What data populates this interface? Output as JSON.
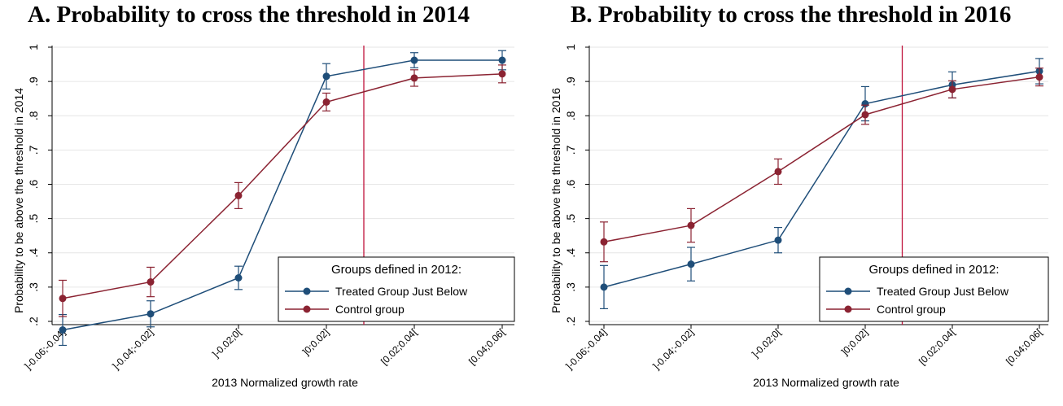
{
  "panels": [
    {
      "title": "A. Probability to cross the threshold in 2014"
    },
    {
      "title": "B. Probability to cross the threshold in 2016"
    }
  ],
  "chart_data": [
    {
      "type": "line",
      "title": "A. Probability to cross the threshold in 2014",
      "xlabel": "2013 Normalized growth rate",
      "ylabel": "Probability to be above the threshold in 2014",
      "categories": [
        "]-0.06;-0.04]",
        "]-0.04;-0.02]",
        "]-0.02;0[",
        "]0;0.02]",
        "[0.02;0.04[",
        "[0.04;0.06["
      ],
      "ylim": [
        0.2,
        1.0
      ],
      "yticks": [
        0.2,
        0.3,
        0.4,
        0.5,
        0.6,
        0.7,
        0.8,
        0.9,
        1.0
      ],
      "ytick_labels": [
        ".2",
        ".3",
        ".4",
        ".5",
        ".6",
        ".7",
        ".8",
        ".9",
        "1"
      ],
      "threshold_category_index": 3.5,
      "legend": {
        "title": "Groups defined in 2012:",
        "position": "bottom-right"
      },
      "grid": "horizontal",
      "series": [
        {
          "name": "Treated Group Just Below",
          "color": "#1f4e79",
          "values": [
            0.175,
            0.222,
            0.327,
            0.915,
            0.962,
            0.962
          ],
          "ci_low": [
            0.13,
            0.184,
            0.293,
            0.878,
            0.94,
            0.934
          ],
          "ci_high": [
            0.22,
            0.26,
            0.361,
            0.952,
            0.984,
            0.99
          ]
        },
        {
          "name": "Control group",
          "color": "#8b2332",
          "values": [
            0.267,
            0.315,
            0.567,
            0.84,
            0.91,
            0.922
          ],
          "ci_low": [
            0.214,
            0.272,
            0.529,
            0.814,
            0.886,
            0.896
          ],
          "ci_high": [
            0.32,
            0.358,
            0.605,
            0.866,
            0.934,
            0.948
          ]
        }
      ]
    },
    {
      "type": "line",
      "title": "B. Probability to cross the threshold in 2016",
      "xlabel": "2013 Normalized growth rate",
      "ylabel": "Probability to be above the threshold in 2016",
      "categories": [
        "]-0.06;-0.04]",
        "]-0.04;-0.02]",
        "]-0.02;0[",
        "]0;0.02]",
        "[0.02;0.04[",
        "[0.04;0.06["
      ],
      "ylim": [
        0.2,
        1.0
      ],
      "yticks": [
        0.2,
        0.3,
        0.4,
        0.5,
        0.6,
        0.7,
        0.8,
        0.9,
        1.0
      ],
      "ytick_labels": [
        ".2",
        ".3",
        ".4",
        ".5",
        ".6",
        ".7",
        ".8",
        ".9",
        "1"
      ],
      "threshold_category_index": 3.5,
      "legend": {
        "title": "Groups defined in 2012:",
        "position": "bottom-right"
      },
      "grid": "horizontal",
      "series": [
        {
          "name": "Treated Group Just Below",
          "color": "#1f4e79",
          "values": [
            0.3,
            0.367,
            0.437,
            0.835,
            0.89,
            0.93
          ],
          "ci_low": [
            0.237,
            0.318,
            0.4,
            0.785,
            0.852,
            0.893
          ],
          "ci_high": [
            0.363,
            0.416,
            0.474,
            0.885,
            0.928,
            0.967
          ]
        },
        {
          "name": "Control group",
          "color": "#8b2332",
          "values": [
            0.432,
            0.48,
            0.637,
            0.803,
            0.877,
            0.913
          ],
          "ci_low": [
            0.374,
            0.431,
            0.6,
            0.775,
            0.852,
            0.887
          ],
          "ci_high": [
            0.49,
            0.529,
            0.674,
            0.831,
            0.902,
            0.939
          ]
        }
      ]
    }
  ]
}
